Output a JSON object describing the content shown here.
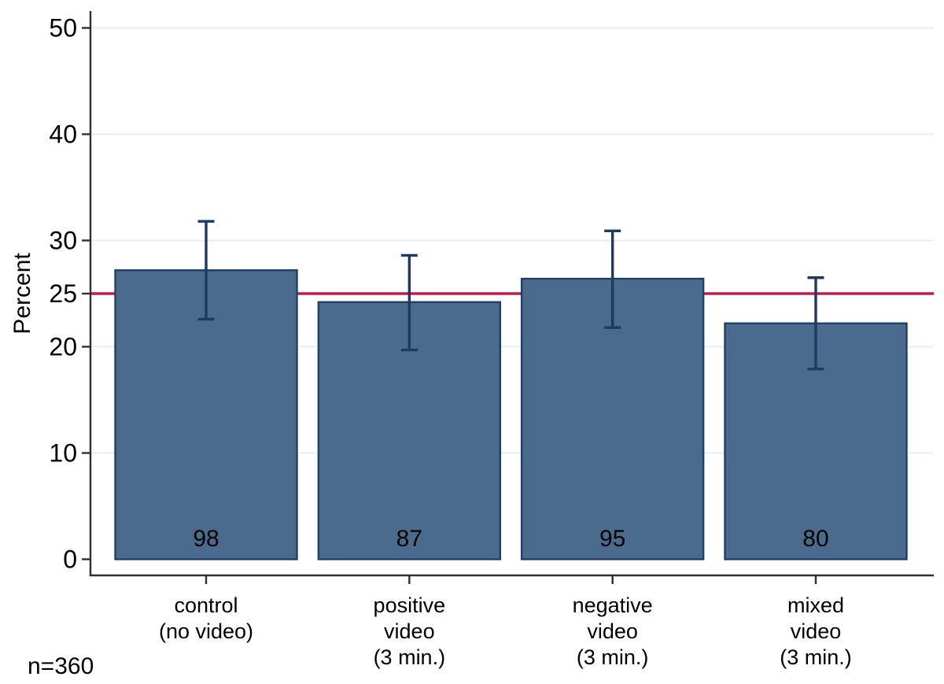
{
  "chart_data": {
    "type": "bar",
    "title": "",
    "ylabel": "Percent",
    "xlabel": "",
    "note": "n=360",
    "yticks": [
      0,
      10,
      20,
      25,
      30,
      40,
      50
    ],
    "gridline_ticks": [
      10,
      20,
      30,
      40,
      50
    ],
    "ylim": [
      0,
      52
    ],
    "grid": true,
    "legend": "none",
    "reference_line_y": 25,
    "groups": [
      {
        "id": "control",
        "label_lines": [
          "control",
          "(no video)"
        ],
        "value_percent": 27.2,
        "count_label": "98",
        "ci_95": [
          22.6,
          31.8
        ]
      },
      {
        "id": "positive-video",
        "label_lines": [
          "positive",
          "video",
          "(3 min.)"
        ],
        "value_percent": 24.2,
        "count_label": "87",
        "ci_95": [
          19.7,
          28.6
        ]
      },
      {
        "id": "negative-video",
        "label_lines": [
          "negative",
          "video",
          "(3 min.)"
        ],
        "value_percent": 26.4,
        "count_label": "95",
        "ci_95": [
          21.8,
          30.9
        ]
      },
      {
        "id": "mixed-video",
        "label_lines": [
          "mixed",
          "video",
          "(3 min.)"
        ],
        "value_percent": 22.2,
        "count_label": "80",
        "ci_95": [
          17.9,
          26.5
        ]
      }
    ],
    "colors": {
      "bar_fill": "#4a6b8c",
      "bar_outline": "#203f66",
      "error_bar": "#1f3864",
      "reference_line": "#c41a4c",
      "gridline": "#e9eef2",
      "axis": "#303030",
      "text": "#000000",
      "background": "#ffffff"
    }
  }
}
